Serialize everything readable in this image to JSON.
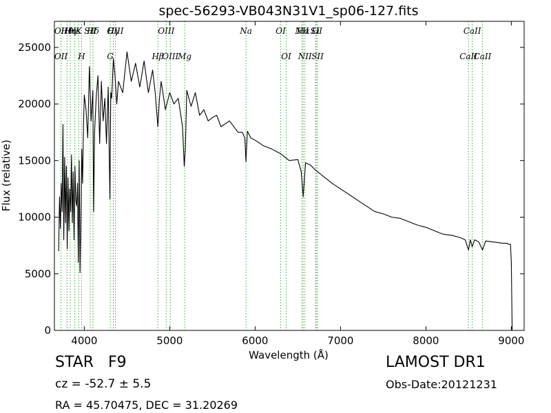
{
  "chart_data": {
    "type": "line",
    "title": "spec-56293-VB043N31V1_sp06-127.fits",
    "xlabel": "Wavelength (Å)",
    "ylabel": "Flux (relative)",
    "xlim": [
      3650,
      9150
    ],
    "ylim": [
      0,
      27300
    ],
    "xticks": [
      4000,
      5000,
      6000,
      7000,
      8000,
      9000
    ],
    "yticks": [
      0,
      5000,
      10000,
      15000,
      20000,
      25000
    ],
    "grid": false,
    "legend": "none",
    "series": [
      {
        "color": "#000000",
        "x": [
          3700,
          3710,
          3720,
          3730,
          3740,
          3750,
          3760,
          3770,
          3780,
          3790,
          3800,
          3810,
          3820,
          3830,
          3840,
          3850,
          3860,
          3870,
          3880,
          3890,
          3900,
          3910,
          3920,
          3930,
          3940,
          3950,
          3960,
          3970,
          3980,
          3990,
          4000,
          4020,
          4040,
          4060,
          4080,
          4100,
          4110,
          4120,
          4140,
          4160,
          4180,
          4200,
          4220,
          4240,
          4260,
          4280,
          4300,
          4310,
          4320,
          4340,
          4360,
          4380,
          4400,
          4450,
          4500,
          4550,
          4600,
          4650,
          4700,
          4750,
          4800,
          4830,
          4861,
          4880,
          4900,
          4950,
          5000,
          5050,
          5100,
          5150,
          5170,
          5183,
          5200,
          5250,
          5300,
          5350,
          5400,
          5450,
          5500,
          5550,
          5600,
          5700,
          5800,
          5850,
          5880,
          5893,
          5910,
          5950,
          6000,
          6100,
          6200,
          6300,
          6400,
          6500,
          6540,
          6563,
          6590,
          6650,
          6700,
          6800,
          6900,
          7000,
          7100,
          7200,
          7300,
          7400,
          7500,
          7600,
          7700,
          7800,
          7900,
          8000,
          8100,
          8200,
          8300,
          8400,
          8460,
          8498,
          8520,
          8542,
          8570,
          8620,
          8662,
          8700,
          8800,
          8900,
          8950,
          8970,
          8990,
          9000,
          9010
        ],
        "y": [
          7000,
          11800,
          9000,
          13000,
          10500,
          18200,
          8000,
          15300,
          9500,
          14500,
          7200,
          13500,
          8800,
          12500,
          10500,
          15500,
          9500,
          14000,
          8000,
          14500,
          11500,
          11000,
          13000,
          6000,
          15000,
          5100,
          9500,
          16000,
          13000,
          18000,
          20800,
          19500,
          17000,
          23300,
          18500,
          21200,
          10500,
          17500,
          20700,
          22500,
          16500,
          22000,
          18500,
          20500,
          16500,
          21500,
          11600,
          21000,
          20500,
          24000,
          22500,
          20000,
          22000,
          21000,
          24600,
          22000,
          23600,
          21500,
          23800,
          21000,
          23000,
          21000,
          18000,
          20500,
          22000,
          19500,
          21000,
          20000,
          20500,
          18000,
          14500,
          16000,
          21200,
          19800,
          21000,
          19000,
          19500,
          18500,
          18800,
          19000,
          18000,
          18500,
          17500,
          17500,
          17000,
          14900,
          17600,
          17000,
          16800,
          16300,
          16000,
          15600,
          15000,
          15100,
          14000,
          11800,
          14800,
          14600,
          14200,
          13600,
          13000,
          12500,
          12000,
          11500,
          11000,
          10500,
          10300,
          10000,
          9900,
          9600,
          9300,
          9100,
          8800,
          8500,
          8400,
          8200,
          8000,
          7100,
          8000,
          7400,
          8000,
          7800,
          7100,
          7900,
          7800,
          7700,
          7700,
          7600,
          7600,
          6000,
          0
        ]
      }
    ],
    "lines": [
      {
        "label": "OII",
        "wl": 3727,
        "row": "top"
      },
      {
        "label": "OII",
        "wl": 3727,
        "row": "bot"
      },
      {
        "label": "Hθ",
        "wl": 3798,
        "row": "top"
      },
      {
        "label": "Hη",
        "wl": 3835,
        "row": "top"
      },
      {
        "label": "Hε",
        "wl": 3889,
        "row": "top"
      },
      {
        "label": "K",
        "wl": 3934,
        "row": "top"
      },
      {
        "label": "SII",
        "wl": 4069,
        "row": "top"
      },
      {
        "label": "H",
        "wl": 3968,
        "row": "bot"
      },
      {
        "label": "Hδ",
        "wl": 4102,
        "row": "top"
      },
      {
        "label": "OIII",
        "wl": 4363,
        "row": "top"
      },
      {
        "label": "Hγ",
        "wl": 4340,
        "row": "top"
      },
      {
        "label": "G",
        "wl": 4304,
        "row": "bot"
      },
      {
        "label": "OIII",
        "wl": 4959,
        "row": "top"
      },
      {
        "label": "OIII",
        "wl": 5007,
        "row": "bot"
      },
      {
        "label": "Hβ",
        "wl": 4861,
        "row": "bot"
      },
      {
        "label": "Mg",
        "wl": 5175,
        "row": "bot"
      },
      {
        "label": "Na",
        "wl": 5893,
        "row": "top"
      },
      {
        "label": "OI",
        "wl": 6300,
        "row": "top"
      },
      {
        "label": "OI",
        "wl": 6364,
        "row": "bot"
      },
      {
        "label": "Hα",
        "wl": 6563,
        "row": "top"
      },
      {
        "label": "SII",
        "wl": 6716,
        "row": "top"
      },
      {
        "label": "NII",
        "wl": 6548,
        "row": "top"
      },
      {
        "label": "NII",
        "wl": 6583,
        "row": "bot"
      },
      {
        "label": "Li",
        "wl": 6708,
        "row": "top"
      },
      {
        "label": "SII",
        "wl": 6731,
        "row": "bot"
      },
      {
        "label": "CaII",
        "wl": 8498,
        "row": "bot"
      },
      {
        "label": "CaII",
        "wl": 8542,
        "row": "top"
      },
      {
        "label": "CaII",
        "wl": 8662,
        "row": "bot"
      }
    ]
  },
  "info": {
    "object_type": "STAR",
    "subclass": "F9",
    "redshift": "cz = -52.7  ± 5.5",
    "coords": "RA = 45.70475, DEC = 31.20269",
    "survey": "LAMOST DR1",
    "obs_date": "Obs-Date:20121231"
  }
}
